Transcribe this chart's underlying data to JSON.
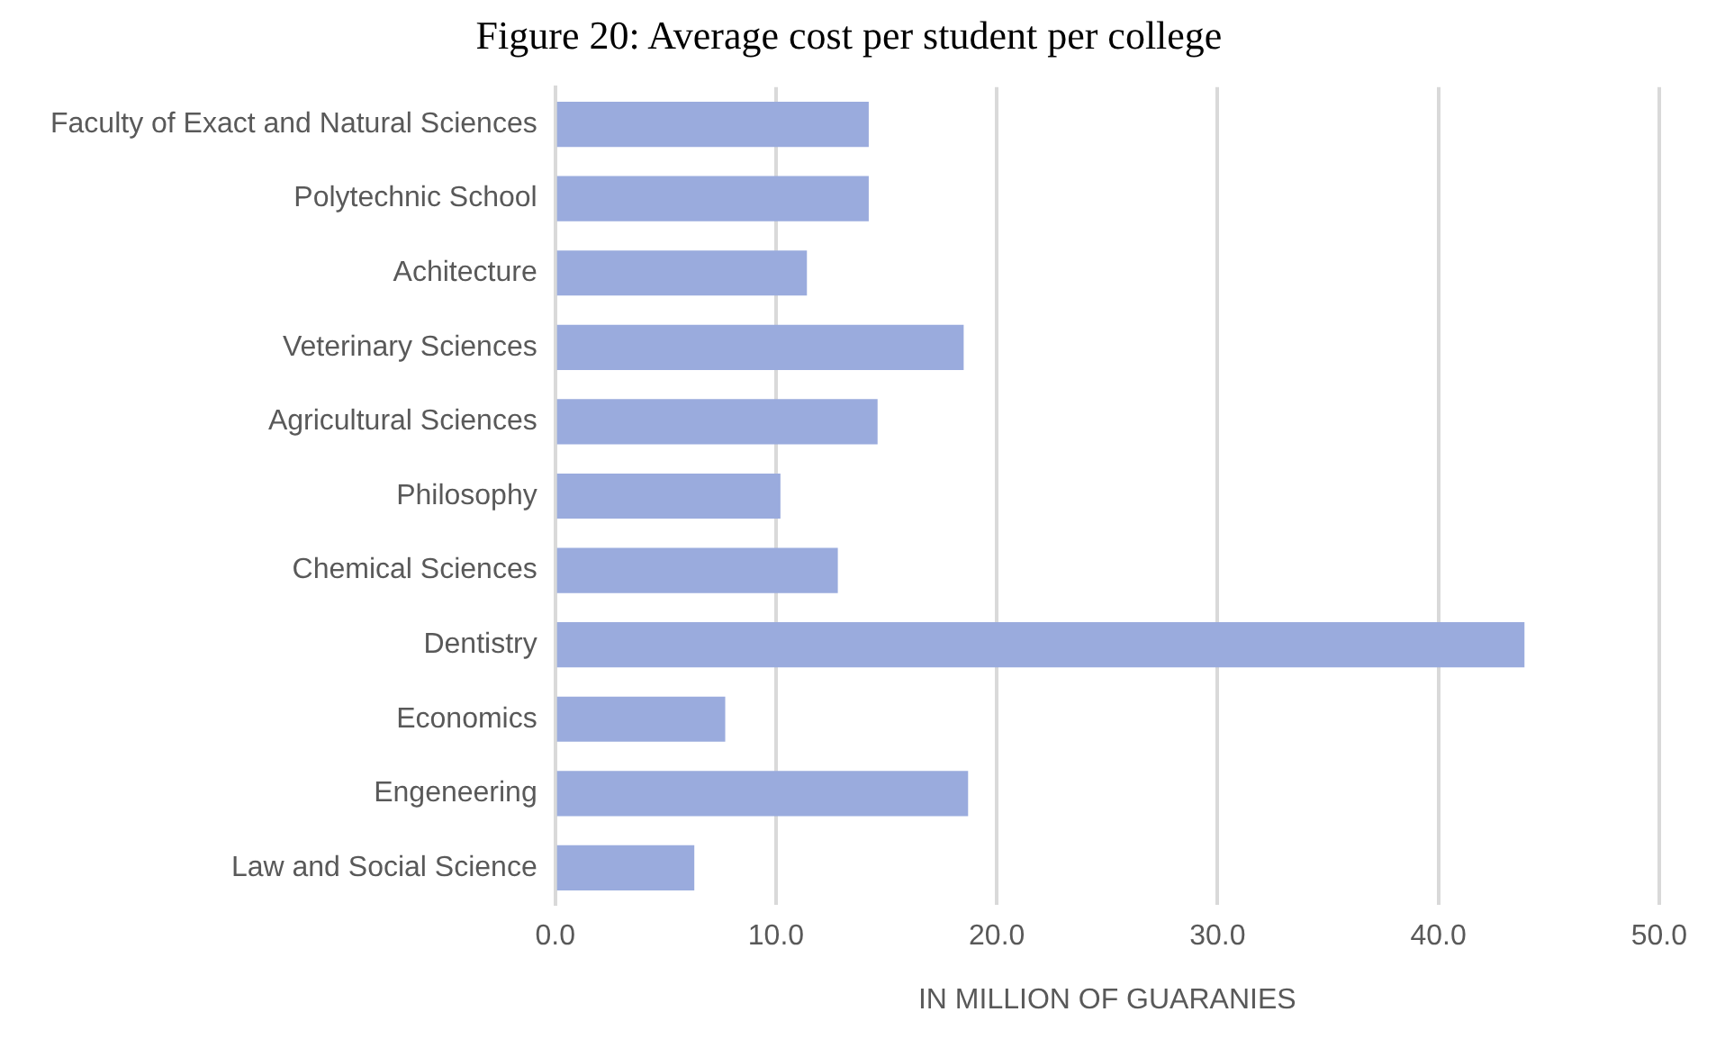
{
  "chart_data": {
    "type": "bar",
    "orientation": "horizontal",
    "title": "Figure 20: Average cost per student per college",
    "xlabel": "IN MILLION OF GUARANIES",
    "categories": [
      "Faculty of Exact and Natural Sciences",
      "Polytechnic School",
      "Achitecture",
      "Veterinary Sciences",
      "Agricultural Sciences",
      "Philosophy",
      "Chemical Sciences",
      "Dentistry",
      "Economics",
      "Engeneering",
      "Law and Social Science"
    ],
    "values": [
      14.2,
      14.2,
      11.4,
      18.5,
      14.6,
      10.2,
      12.8,
      43.9,
      7.7,
      18.7,
      6.3
    ],
    "color": "#9aabdd",
    "xlim": [
      0,
      50
    ],
    "xticks": [
      {
        "value": 0,
        "label": "0.0"
      },
      {
        "value": 10,
        "label": "10.0"
      },
      {
        "value": 20,
        "label": "20.0"
      },
      {
        "value": 30,
        "label": "30.0"
      },
      {
        "value": 40,
        "label": "40.0"
      },
      {
        "value": 50,
        "label": "50.0"
      }
    ],
    "grid": "x",
    "legend": false
  }
}
